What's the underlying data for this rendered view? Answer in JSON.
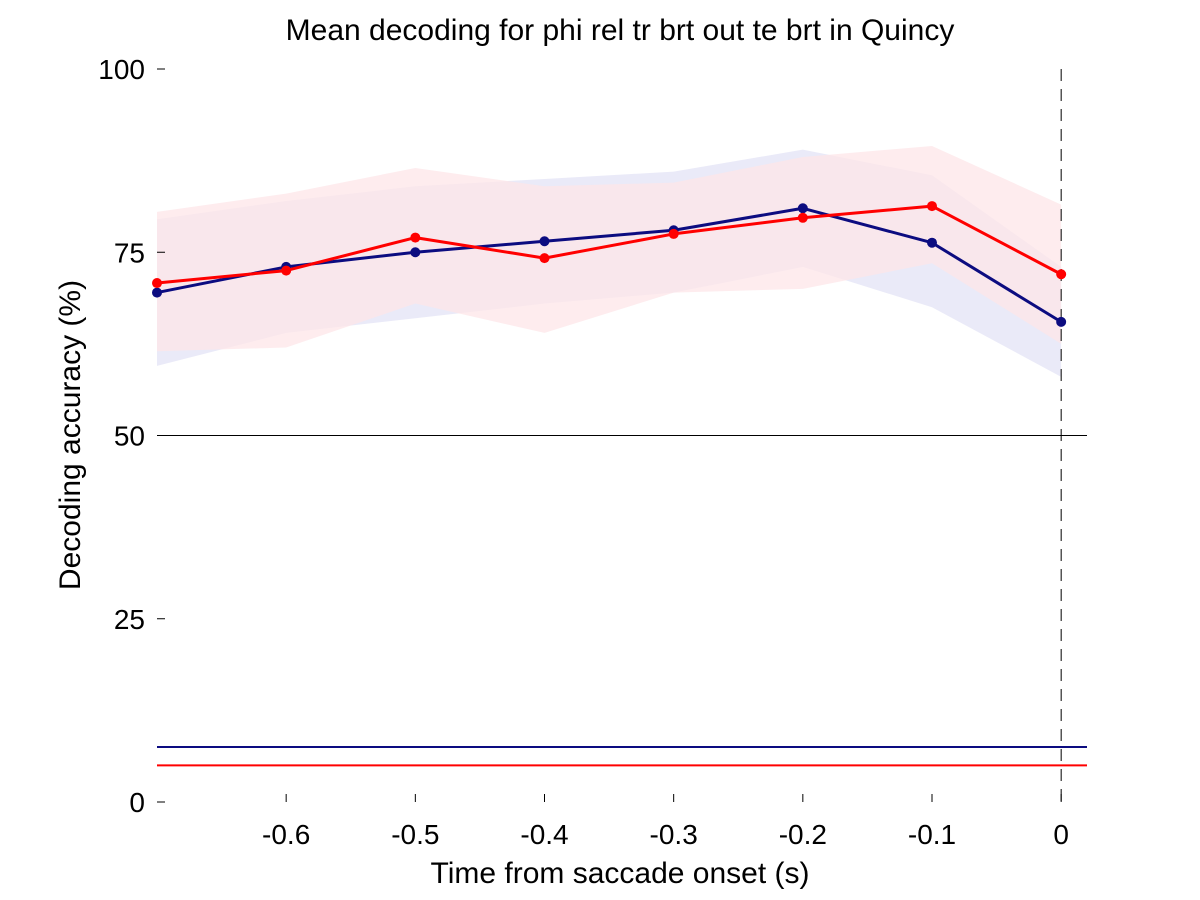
{
  "chart_data": {
    "type": "line",
    "title": "Mean decoding for phi rel tr brt out te brt in  Quincy",
    "xlabel": "Time from saccade onset (s)",
    "ylabel": "Decoding accuracy (%)",
    "xlim": [
      -0.7,
      0.02
    ],
    "ylim": [
      0,
      100
    ],
    "x": [
      -0.7,
      -0.6,
      -0.5,
      -0.4,
      -0.3,
      -0.2,
      -0.1,
      0.0
    ],
    "x_ticks": [
      -0.6,
      -0.5,
      -0.4,
      -0.3,
      -0.2,
      -0.1,
      0
    ],
    "x_tick_labels": [
      "-0.6",
      "-0.5",
      "-0.4",
      "-0.3",
      "-0.2",
      "-0.1",
      "0"
    ],
    "y_ticks": [
      0,
      25,
      50,
      75,
      100
    ],
    "y_tick_labels": [
      "0",
      "25",
      "50",
      "75",
      "100"
    ],
    "series": [
      {
        "name": "blue",
        "color": "#0c0c80",
        "band_color": "#e3e3f5",
        "values": [
          69.5,
          73.0,
          75.0,
          76.5,
          78.0,
          81.0,
          76.3,
          65.5
        ],
        "upper": [
          79.5,
          82.0,
          84.0,
          85.0,
          86.0,
          89.0,
          85.5,
          73.0
        ],
        "lower": [
          59.5,
          64.0,
          66.0,
          68.0,
          69.5,
          73.0,
          67.5,
          58.0
        ],
        "chance": 7.5
      },
      {
        "name": "red",
        "color": "#ff0000",
        "band_color": "#fde6e8",
        "values": [
          70.8,
          72.5,
          77.0,
          74.2,
          77.5,
          79.7,
          81.3,
          72.0
        ],
        "upper": [
          80.5,
          83.0,
          86.5,
          84.0,
          84.5,
          88.0,
          89.5,
          81.5
        ],
        "lower": [
          61.5,
          62.0,
          68.0,
          64.0,
          69.5,
          70.0,
          73.5,
          62.5
        ],
        "chance": 5.0
      }
    ],
    "reference_lines": [
      {
        "axis": "y",
        "value": 50,
        "style": "solid",
        "color": "#000000"
      },
      {
        "axis": "x",
        "value": 0,
        "style": "dashed",
        "color": "#000000"
      }
    ],
    "grid": false,
    "legend": "none"
  }
}
